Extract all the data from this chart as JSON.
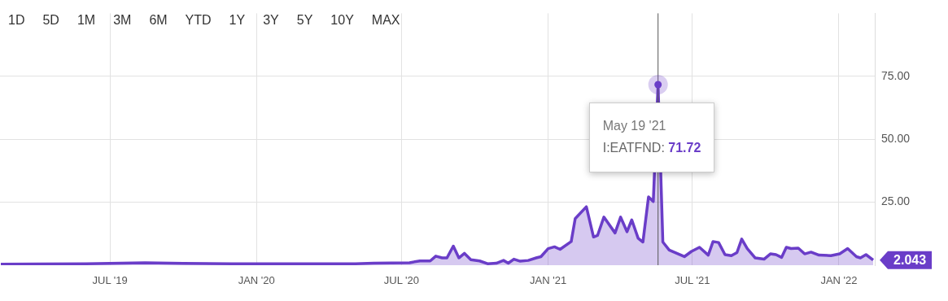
{
  "chart_data": {
    "type": "area",
    "legend": false,
    "grid": true,
    "marker": "none",
    "line_style": "solid",
    "xlim": [
      "2019-02-13",
      "2022-02-15"
    ],
    "xticks": [
      {
        "value": "2019-07-01",
        "label": "JUL '19"
      },
      {
        "value": "2020-01-01",
        "label": "JAN '20"
      },
      {
        "value": "2020-07-01",
        "label": "JUL '20"
      },
      {
        "value": "2021-01-01",
        "label": "JAN '21"
      },
      {
        "value": "2021-07-01",
        "label": "JUL '21"
      },
      {
        "value": "2022-01-01",
        "label": "JAN '22"
      }
    ],
    "ylim": [
      0,
      100
    ],
    "yticks": [
      {
        "value": 25,
        "label": "25.00"
      },
      {
        "value": 50,
        "label": "50.00"
      },
      {
        "value": 75,
        "label": "75.00"
      }
    ],
    "ref_lines": [
      {
        "axis": "x",
        "value": "2021-05-19",
        "color": "#555555"
      }
    ],
    "annotations": [
      "1D",
      "5D",
      "1M",
      "3M",
      "6M",
      "YTD",
      "1Y",
      "3Y",
      "5Y",
      "10Y",
      "MAX",
      "May 19 '21",
      "I:EATFND: 71.72",
      {
        "text": "2.043",
        "x": "2022-02-13",
        "y": 2.043
      }
    ],
    "x": [
      "2019-02-14",
      "2019-04-01",
      "2019-06-01",
      "2019-08-14",
      "2019-10-01",
      "2019-12-01",
      "2020-02-01",
      "2020-04-01",
      "2020-05-04",
      "2020-05-27",
      "2020-07-11",
      "2020-07-24",
      "2020-08-06",
      "2020-08-13",
      "2020-08-21",
      "2020-08-27",
      "2020-09-04",
      "2020-09-11",
      "2020-09-18",
      "2020-09-26",
      "2020-10-07",
      "2020-10-17",
      "2020-10-28",
      "2020-11-06",
      "2020-11-12",
      "2020-11-19",
      "2020-11-27",
      "2020-12-07",
      "2020-12-17",
      "2020-12-23",
      "2021-01-01",
      "2021-01-09",
      "2021-01-16",
      "2021-01-30",
      "2021-02-04",
      "2021-02-18",
      "2021-02-27",
      "2021-03-04",
      "2021-03-12",
      "2021-03-26",
      "2021-04-02",
      "2021-04-10",
      "2021-04-16",
      "2021-04-24",
      "2021-04-30",
      "2021-05-07",
      "2021-05-13",
      "2021-05-19",
      "2021-05-25",
      "2021-06-02",
      "2021-06-21",
      "2021-06-30",
      "2021-07-10",
      "2021-07-21",
      "2021-07-27",
      "2021-08-03",
      "2021-08-11",
      "2021-08-19",
      "2021-08-26",
      "2021-09-01",
      "2021-09-08",
      "2021-09-18",
      "2021-09-29",
      "2021-10-07",
      "2021-10-14",
      "2021-10-21",
      "2021-10-27",
      "2021-11-02",
      "2021-11-11",
      "2021-11-19",
      "2021-11-27",
      "2021-12-07",
      "2021-12-22",
      "2022-01-02",
      "2022-01-12",
      "2022-01-23",
      "2022-01-28",
      "2022-02-04",
      "2022-02-13"
    ],
    "series": [
      {
        "color": "#6a3dc8",
        "values": [
          0.4,
          0.5,
          0.6,
          1.0,
          0.7,
          0.6,
          0.6,
          0.6,
          0.6,
          0.8,
          1.0,
          1.7,
          1.7,
          3.6,
          2.9,
          2.9,
          7.6,
          2.9,
          4.7,
          2.2,
          1.7,
          0.6,
          0.8,
          1.9,
          0.8,
          2.4,
          1.6,
          1.9,
          2.9,
          3.4,
          6.6,
          7.3,
          6.3,
          9.4,
          18.5,
          23.2,
          11.2,
          11.8,
          19.1,
          12.8,
          19.1,
          13.3,
          18.0,
          10.7,
          9.2,
          27.1,
          25.3,
          71.72,
          9.2,
          6.0,
          3.4,
          5.5,
          7.1,
          4.0,
          9.4,
          9.0,
          4.2,
          3.8,
          5.0,
          10.4,
          6.6,
          2.9,
          2.4,
          4.5,
          4.2,
          3.1,
          7.1,
          6.6,
          6.8,
          4.5,
          5.2,
          4.0,
          3.8,
          4.5,
          6.6,
          3.4,
          2.9,
          4.2,
          2.043
        ]
      }
    ]
  }
}
